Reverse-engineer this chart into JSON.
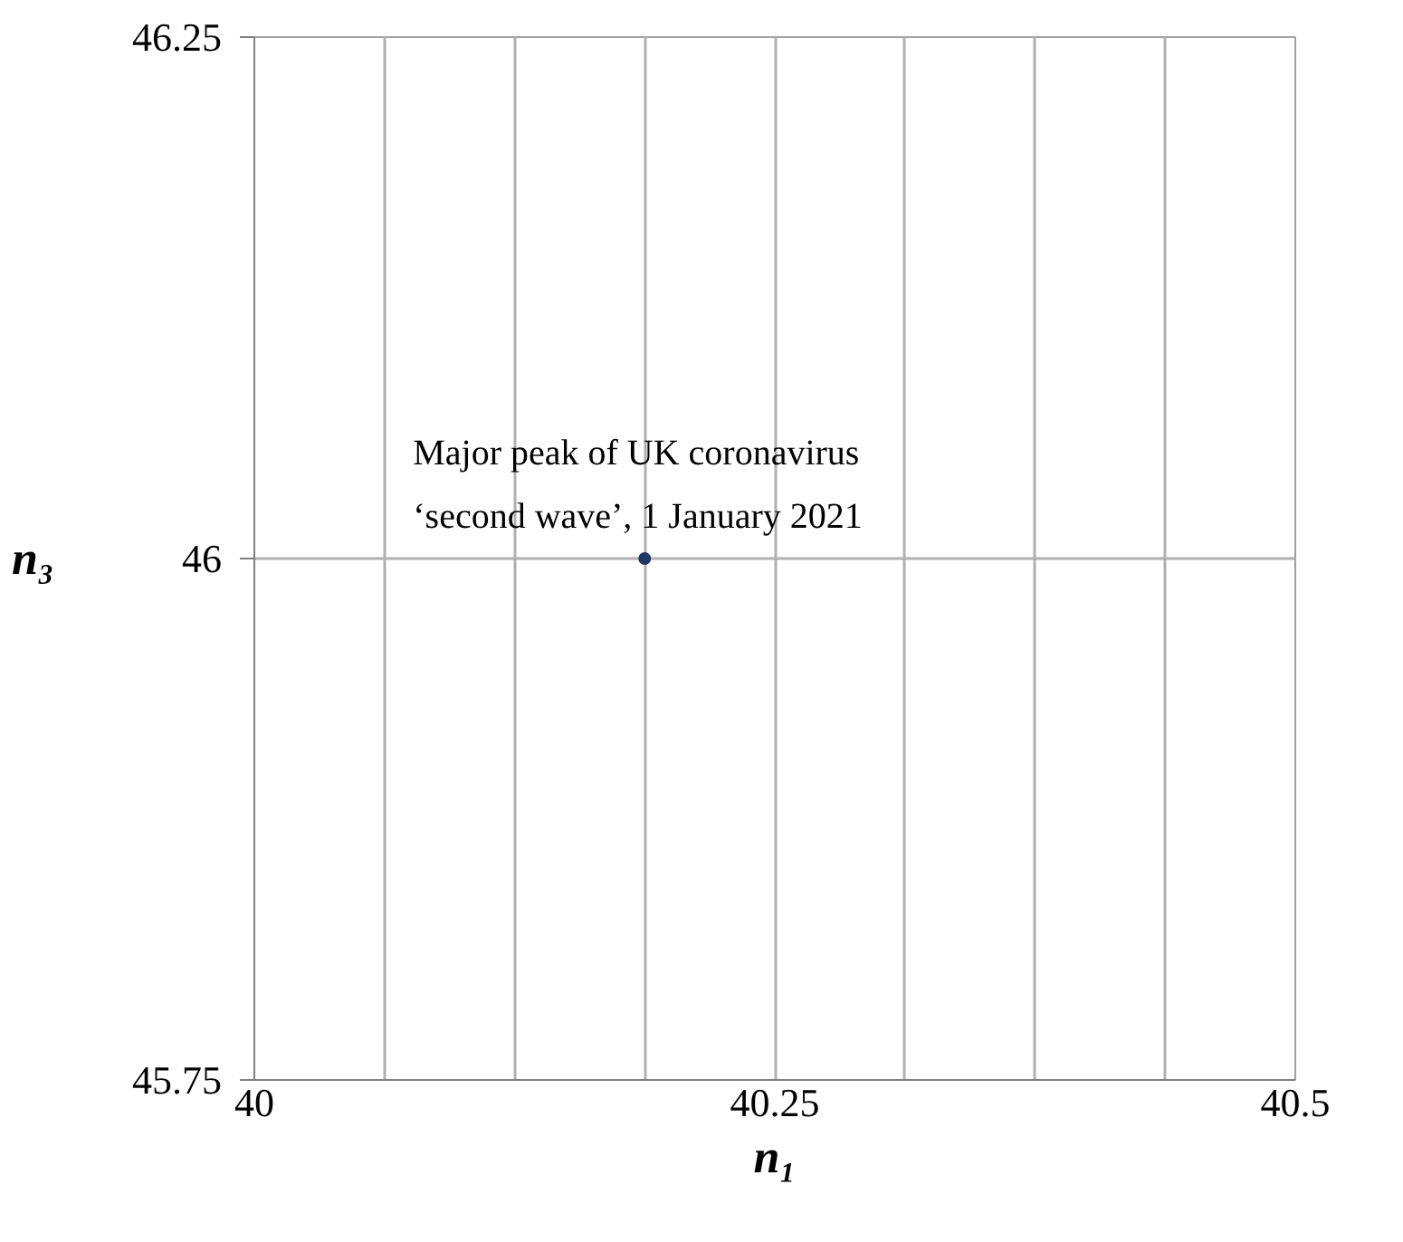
{
  "chart_data": {
    "type": "scatter",
    "xlabel": "n₁",
    "ylabel": "n₃",
    "x": [
      40.1875
    ],
    "values": [
      46
    ],
    "color": "#1f3864",
    "marker": "circle",
    "xlim": [
      40,
      40.5
    ],
    "ylim": [
      45.75,
      46.25
    ],
    "xticks": [
      40,
      {
        "value": 40.0625,
        "label": null
      },
      {
        "value": 40.125,
        "label": null
      },
      {
        "value": 40.1875,
        "label": null
      },
      40.25,
      {
        "value": 40.3125,
        "label": null
      },
      {
        "value": 40.375,
        "label": null
      },
      {
        "value": 40.4375,
        "label": null
      },
      40.5
    ],
    "yticks": [
      45.75,
      46,
      46.25
    ],
    "grid": true,
    "annotations": [
      {
        "text": "Major peak of UK coronavirus\n‘second wave’, 1 January 2021",
        "x": 40.1875,
        "y": 46
      }
    ]
  }
}
